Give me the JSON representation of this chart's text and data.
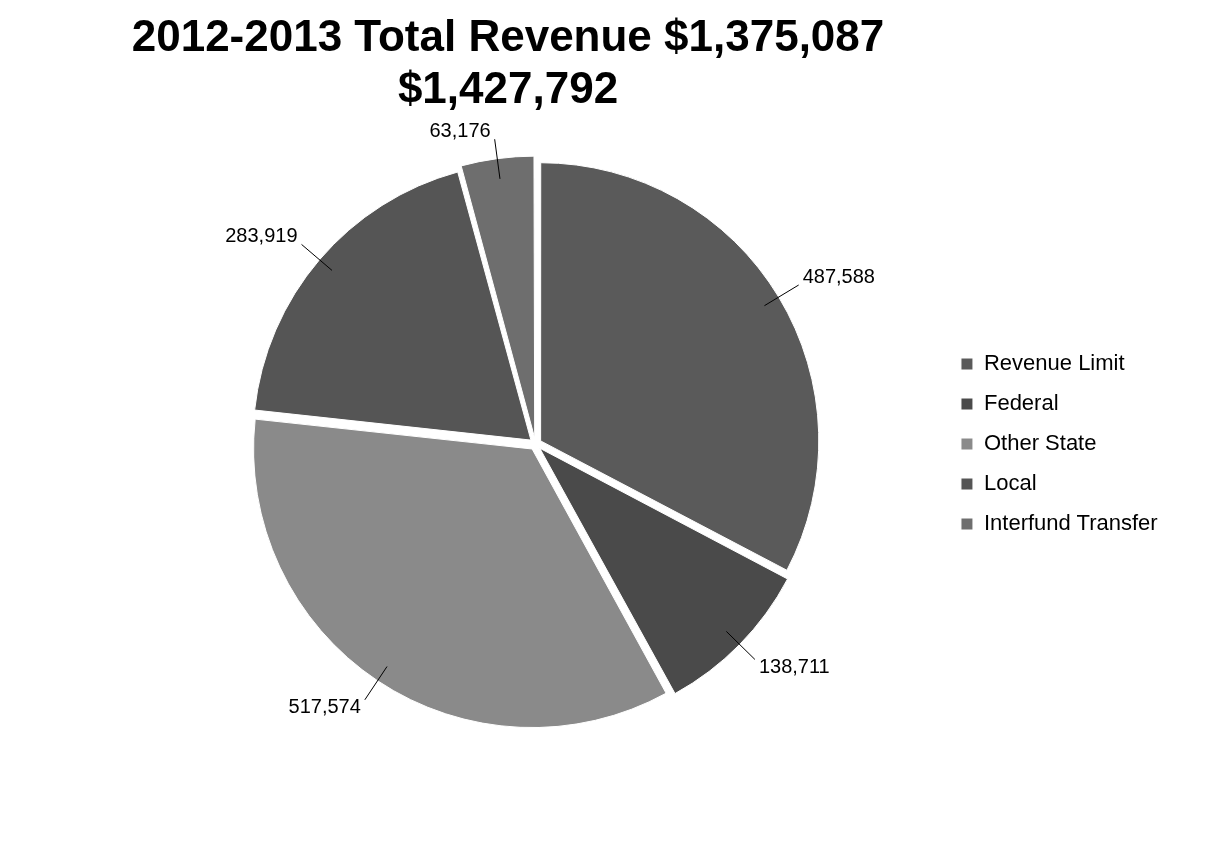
{
  "chart_data": {
    "type": "pie",
    "title": "2012-2013 Total Revenue  $1,375,087",
    "subtitle": "$1,427,792",
    "categories": [
      "Revenue Limit",
      "Federal",
      "Other State",
      "Local",
      "Interfund Transfer"
    ],
    "values": [
      487588,
      138711,
      517574,
      283919,
      63176
    ],
    "colors": [
      "#5a5a5a",
      "#4a4a4a",
      "#8a8a8a",
      "#555555",
      "#6e6e6e"
    ],
    "value_labels": [
      "487,588",
      "138,711",
      "517,574",
      "283,919",
      "63,176"
    ],
    "legend": "right"
  }
}
